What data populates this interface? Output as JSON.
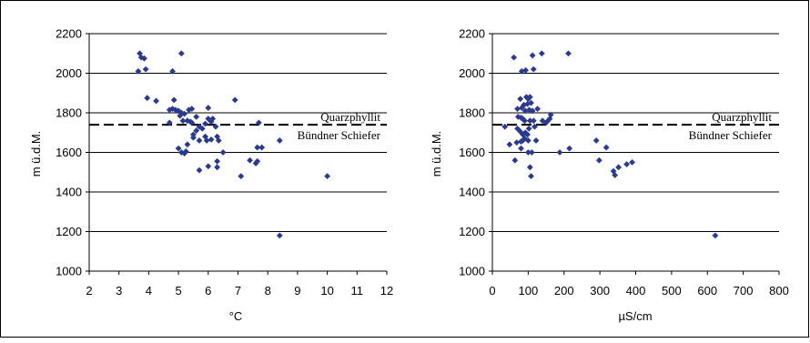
{
  "colors": {
    "marker": "#2B3A8C",
    "grid": "#000000",
    "frame": "#000000"
  },
  "chart_data": [
    {
      "type": "scatter",
      "xlabel": "°C",
      "ylabel": "m ü.d.M.",
      "xlim": [
        2,
        12
      ],
      "ylim": [
        1000,
        2200
      ],
      "xticks": [
        2,
        3,
        4,
        5,
        6,
        7,
        8,
        9,
        10,
        11,
        12
      ],
      "yticks": [
        1000,
        1200,
        1400,
        1600,
        1800,
        2000,
        2200
      ],
      "grid": "horizontal",
      "boundary": {
        "y": 1740,
        "label_above": "Quarzphyllit",
        "label_below": "Bündner Schiefer"
      },
      "points": [
        [
          3.7,
          2100
        ],
        [
          3.75,
          2080
        ],
        [
          3.85,
          2075
        ],
        [
          3.65,
          2010
        ],
        [
          3.9,
          2020
        ],
        [
          5.1,
          2100
        ],
        [
          4.8,
          2010
        ],
        [
          3.95,
          1875
        ],
        [
          4.25,
          1860
        ],
        [
          4.85,
          1865
        ],
        [
          6.9,
          1865
        ],
        [
          4.7,
          1815
        ],
        [
          4.8,
          1820
        ],
        [
          4.9,
          1815
        ],
        [
          5.0,
          1810
        ],
        [
          5.1,
          1800
        ],
        [
          5.2,
          1795
        ],
        [
          5.35,
          1815
        ],
        [
          5.45,
          1820
        ],
        [
          5.6,
          1780
        ],
        [
          6.0,
          1825
        ],
        [
          5.05,
          1785
        ],
        [
          5.15,
          1760
        ],
        [
          5.3,
          1760
        ],
        [
          5.4,
          1755
        ],
        [
          5.45,
          1750
        ],
        [
          6.0,
          1770
        ],
        [
          6.15,
          1770
        ],
        [
          6.1,
          1755
        ],
        [
          5.9,
          1745
        ],
        [
          6.25,
          1730
        ],
        [
          4.7,
          1750
        ],
        [
          5.7,
          1730
        ],
        [
          5.8,
          1720
        ],
        [
          5.6,
          1710
        ],
        [
          5.5,
          1690
        ],
        [
          5.9,
          1680
        ],
        [
          6.3,
          1680
        ],
        [
          6.1,
          1665
        ],
        [
          5.95,
          1660
        ],
        [
          6.5,
          1600
        ],
        [
          5.0,
          1620
        ],
        [
          5.1,
          1600
        ],
        [
          5.2,
          1595
        ],
        [
          5.3,
          1640
        ],
        [
          5.25,
          1605
        ],
        [
          5.7,
          1660
        ],
        [
          5.5,
          1675
        ],
        [
          6.35,
          1660
        ],
        [
          7.7,
          1750
        ],
        [
          7.65,
          1625
        ],
        [
          7.8,
          1625
        ],
        [
          7.4,
          1560
        ],
        [
          7.6,
          1545
        ],
        [
          7.65,
          1555
        ],
        [
          8.4,
          1660
        ],
        [
          6.0,
          1530
        ],
        [
          6.3,
          1525
        ],
        [
          5.7,
          1510
        ],
        [
          7.1,
          1480
        ],
        [
          6.3,
          1555
        ],
        [
          10.0,
          1480
        ],
        [
          8.4,
          1180
        ]
      ]
    },
    {
      "type": "scatter",
      "xlabel": "µS/cm",
      "ylabel": "m ü.d.M.",
      "xlim": [
        0,
        800
      ],
      "ylim": [
        1000,
        2200
      ],
      "xticks": [
        0,
        100,
        200,
        300,
        400,
        500,
        600,
        700,
        800
      ],
      "yticks": [
        1000,
        1200,
        1400,
        1600,
        1800,
        2000,
        2200
      ],
      "grid": "horizontal",
      "boundary": {
        "y": 1740,
        "label_above": "Quarzphyllit",
        "label_below": "Bündner Schiefer"
      },
      "points": [
        [
          60,
          2080
        ],
        [
          112,
          2090
        ],
        [
          138,
          2100
        ],
        [
          212,
          2100
        ],
        [
          82,
          2010
        ],
        [
          93,
          2015
        ],
        [
          115,
          2020
        ],
        [
          78,
          1870
        ],
        [
          95,
          1880
        ],
        [
          100,
          1870
        ],
        [
          105,
          1880
        ],
        [
          88,
          1840
        ],
        [
          98,
          1845
        ],
        [
          108,
          1850
        ],
        [
          70,
          1820
        ],
        [
          82,
          1825
        ],
        [
          92,
          1810
        ],
        [
          103,
          1815
        ],
        [
          112,
          1810
        ],
        [
          126,
          1820
        ],
        [
          163,
          1790
        ],
        [
          72,
          1780
        ],
        [
          80,
          1775
        ],
        [
          85,
          1770
        ],
        [
          90,
          1760
        ],
        [
          105,
          1760
        ],
        [
          115,
          1760
        ],
        [
          140,
          1760
        ],
        [
          155,
          1760
        ],
        [
          160,
          1770
        ],
        [
          150,
          1750
        ],
        [
          35,
          1730
        ],
        [
          70,
          1720
        ],
        [
          78,
          1705
        ],
        [
          85,
          1690
        ],
        [
          92,
          1700
        ],
        [
          98,
          1690
        ],
        [
          102,
          1720
        ],
        [
          118,
          1730
        ],
        [
          48,
          1640
        ],
        [
          68,
          1650
        ],
        [
          80,
          1655
        ],
        [
          85,
          1660
        ],
        [
          90,
          1670
        ],
        [
          100,
          1660
        ],
        [
          80,
          1620
        ],
        [
          122,
          1660
        ],
        [
          63,
          1560
        ],
        [
          100,
          1600
        ],
        [
          110,
          1600
        ],
        [
          188,
          1600
        ],
        [
          215,
          1620
        ],
        [
          290,
          1660
        ],
        [
          318,
          1625
        ],
        [
          298,
          1560
        ],
        [
          352,
          1525
        ],
        [
          338,
          1505
        ],
        [
          375,
          1540
        ],
        [
          390,
          1550
        ],
        [
          342,
          1485
        ],
        [
          105,
          1525
        ],
        [
          108,
          1480
        ],
        [
          622,
          1180
        ]
      ]
    }
  ]
}
